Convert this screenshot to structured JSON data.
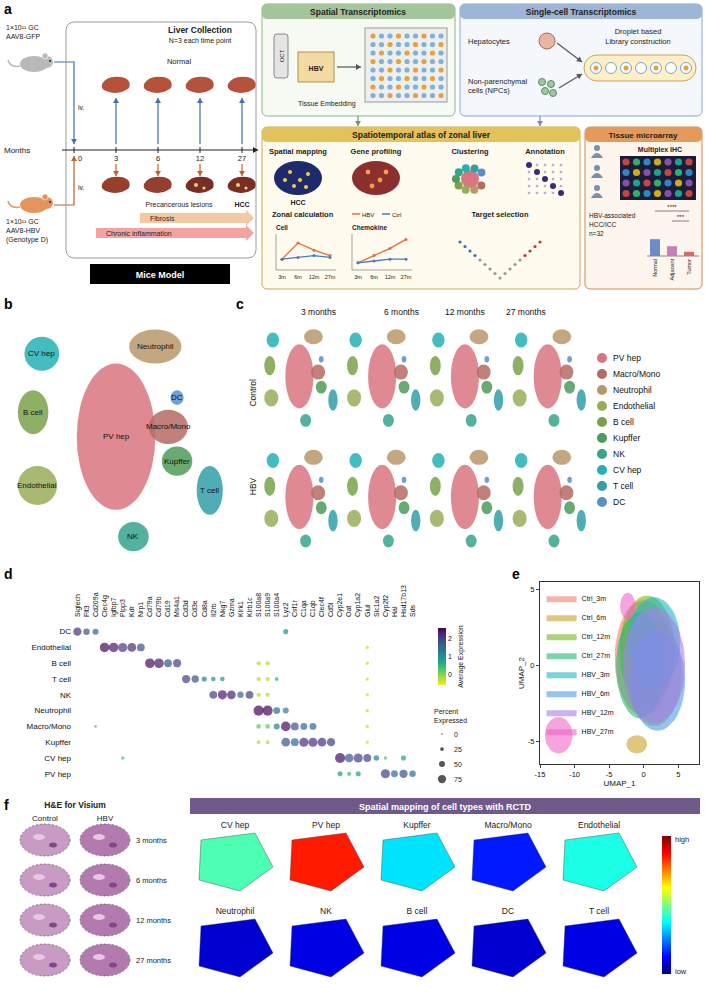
{
  "diagram": {
    "panel_a": {
      "letter": "a",
      "gfp_dose": [
        "1×10¹¹ GC",
        "AAV8-GFP"
      ],
      "hbv_dose": [
        "1×10¹¹ GC",
        "AAV8-HBV",
        "(Genotype D)"
      ],
      "route": "iv.",
      "liver_collection": "Liver Collection",
      "replicates": "N=3 each time point",
      "normal": "Normal",
      "months_label": "Months",
      "months": [
        0,
        3,
        6,
        12,
        27
      ],
      "outcomes": [
        "Precancerous lesions",
        "HCC"
      ],
      "processes": [
        "Fibrosis",
        "Chronic inflammation"
      ],
      "model_label": "Mice Model",
      "spatial": {
        "title": "Spatial Transcriptomics",
        "oct": "OCT",
        "embedding": "Tissue Embedding",
        "block": "HBV"
      },
      "single_cell": {
        "title": "Single-cell Transcriptomics",
        "hepatocytes": "Hepatocytes",
        "npc": [
          "Non-parenchymal",
          "cells (NPCs)"
        ],
        "library": [
          "Droplet based",
          "Library construction"
        ]
      },
      "atlas": {
        "title": "Spatiotemporal atlas of zonal liver",
        "spatial_mapping": "Spatial mapping",
        "gene_profiling": "Gene profiling",
        "hcc": "HCC",
        "zonal": "Zonal calculation",
        "mini_charts": {
          "x": [
            "3m",
            "6m",
            "12m",
            "27m"
          ],
          "series_names": [
            "HBV",
            "Ctrl"
          ],
          "series_colors": [
            "#e0703a",
            "#4a7bc0"
          ],
          "ylim": [
            0,
            1
          ],
          "panels": [
            {
              "title": "Cell",
              "values": [
                [
                  0.3,
                  0.75,
                  0.55,
                  0.4
                ],
                [
                  0.3,
                  0.35,
                  0.4,
                  0.35
                ]
              ]
            },
            {
              "title": "Chemokine",
              "values": [
                [
                  0.2,
                  0.4,
                  0.6,
                  0.85
                ],
                [
                  0.2,
                  0.25,
                  0.3,
                  0.3
                ]
              ]
            }
          ]
        },
        "clustering": "Clustering",
        "annotation": "Annotation",
        "target": "Target selection"
      },
      "tma": {
        "title": "Tissue microarray",
        "ihc": "Multiplex IHC",
        "cohort": [
          "HBV-associated",
          "HCC/ICC",
          "n=32"
        ],
        "bars": {
          "categories": [
            "Normal",
            "Adjacent",
            "Tumor"
          ],
          "values": [
            0.6,
            0.35,
            0.15
          ],
          "ylim": [
            0,
            1
          ],
          "significance": [
            "****",
            "***"
          ]
        }
      }
    },
    "panel_f": {
      "letter": "f",
      "he_title": "H&E for Visium",
      "he_columns": [
        "Control",
        "HBV"
      ],
      "he_rows": [
        "3 months",
        "6 months",
        "12 months",
        "27 months"
      ],
      "rctd_title": "Spatial mapping of cell types with RCTD",
      "scale_labels": {
        "high": "high",
        "low": "low"
      },
      "scale_range": [
        0,
        1
      ],
      "maps": [
        {
          "name": "CV hep",
          "level": 0.45
        },
        {
          "name": "PV hep",
          "level": 0.85
        },
        {
          "name": "Kupffer",
          "level": 0.35
        },
        {
          "name": "Macro/Mono",
          "level": 0.15
        },
        {
          "name": "Endothelial",
          "level": 0.4
        },
        {
          "name": "Neutrophil",
          "level": 0.08
        },
        {
          "name": "NK",
          "level": 0.1
        },
        {
          "name": "B cell",
          "level": 0.1
        },
        {
          "name": "DC",
          "level": 0.08
        },
        {
          "name": "T cell",
          "level": 0.1
        }
      ]
    }
  },
  "chart_data": [
    {
      "panel": "b",
      "type": "cluster_map",
      "tick_labels": false,
      "xlim": [
        0,
        100
      ],
      "ylim": [
        0,
        100
      ],
      "clusters": [
        {
          "name": "PV hep",
          "color": "#d9757f",
          "x": 50,
          "y": 50,
          "rx": 18,
          "ry": 30
        },
        {
          "name": "Macro/Mono",
          "color": "#b56b63",
          "x": 74,
          "y": 54,
          "rx": 9,
          "ry": 7
        },
        {
          "name": "Neutrophil",
          "color": "#b8986a",
          "x": 68,
          "y": 87,
          "rx": 12,
          "ry": 7
        },
        {
          "name": "Endothelial",
          "color": "#98ad5a",
          "x": 14,
          "y": 30,
          "rx": 9,
          "ry": 8
        },
        {
          "name": "B cell",
          "color": "#7aa24a",
          "x": 12,
          "y": 60,
          "rx": 7,
          "ry": 9
        },
        {
          "name": "Kupffer",
          "color": "#4f9b5a",
          "x": 78,
          "y": 40,
          "rx": 7,
          "ry": 6
        },
        {
          "name": "NK",
          "color": "#35a58c",
          "x": 58,
          "y": 9,
          "rx": 7,
          "ry": 6
        },
        {
          "name": "CV hep",
          "color": "#24b0b5",
          "x": 16,
          "y": 84,
          "rx": 8,
          "ry": 7
        },
        {
          "name": "T cell",
          "color": "#319ea8",
          "x": 93,
          "y": 28,
          "rx": 6,
          "ry": 10
        },
        {
          "name": "DC",
          "color": "#5a8fc8",
          "x": 78,
          "y": 66,
          "rx": 3,
          "ry": 3
        }
      ]
    },
    {
      "panel": "c",
      "type": "cluster_grid",
      "tick_labels": false,
      "legend": "right",
      "rows": [
        "Control",
        "HBV"
      ],
      "columns": [
        "3 months",
        "6 months",
        "12 months",
        "27 months"
      ]
    },
    {
      "panel": "d",
      "type": "dot_plot",
      "genes": [
        "Siglech",
        "Flt3",
        "Cd209a",
        "Clec4g",
        "Igfbp7",
        "Plpp3",
        "Kdr",
        "Nrp1",
        "Cd79a",
        "Cd79b",
        "Cd19",
        "Ms4a1",
        "Cd3d",
        "Cd3e",
        "Cd8a",
        "Il2rb",
        "Nkg7",
        "Gzma",
        "Klrk1",
        "Klrb1c",
        "S100a8",
        "S100a9",
        "S100a4",
        "Lyz2",
        "Csf1r",
        "C1qa",
        "C1qb",
        "Clec4f",
        "Cd5l",
        "Cyp2e1",
        "Oat",
        "Cyp1a2",
        "Glul",
        "Slc1a2",
        "Cyp2f2",
        "Hal",
        "Hsd17b13",
        "Sds"
      ],
      "cell_types": [
        "DC",
        "Endothelial",
        "B cell",
        "T cell",
        "NK",
        "Neutrophil",
        "Macro/Mono",
        "Kupffer",
        "CV hep",
        "PV hep"
      ],
      "color_label": "Average Expression",
      "color_range": [
        -0.6,
        2.6
      ],
      "color_ticks": [
        0,
        1,
        2
      ],
      "size_label": "Percent Expressed",
      "size_ticks": [
        0,
        25,
        50,
        75
      ],
      "dots": [
        [
          "Siglech",
          "DC",
          2.2,
          75
        ],
        [
          "Flt3",
          "DC",
          1.8,
          55
        ],
        [
          "Cd209a",
          "DC",
          1.6,
          50
        ],
        [
          "Cd209a",
          "Macro/Mono",
          0.3,
          15
        ],
        [
          "Clec4g",
          "Endothelial",
          2.5,
          90
        ],
        [
          "Igfbp7",
          "Endothelial",
          2.4,
          90
        ],
        [
          "Plpp3",
          "Endothelial",
          2.1,
          85
        ],
        [
          "Plpp3",
          "CV hep",
          0.4,
          20
        ],
        [
          "Kdr",
          "Endothelial",
          2.2,
          80
        ],
        [
          "Nrp1",
          "Endothelial",
          1.8,
          70
        ],
        [
          "Cd79a",
          "B cell",
          2.5,
          90
        ],
        [
          "Cd79b",
          "B cell",
          2.4,
          90
        ],
        [
          "Cd19",
          "B cell",
          1.8,
          70
        ],
        [
          "Ms4a1",
          "B cell",
          2.0,
          75
        ],
        [
          "Cd3d",
          "T cell",
          2.0,
          75
        ],
        [
          "Cd3e",
          "T cell",
          1.8,
          65
        ],
        [
          "Cd8a",
          "T cell",
          1.2,
          40
        ],
        [
          "Il2rb",
          "T cell",
          1.0,
          35
        ],
        [
          "Il2rb",
          "NK",
          2.0,
          70
        ],
        [
          "Nkg7",
          "T cell",
          1.0,
          35
        ],
        [
          "Nkg7",
          "NK",
          2.4,
          85
        ],
        [
          "Gzma",
          "NK",
          2.3,
          80
        ],
        [
          "Klrk1",
          "NK",
          1.5,
          55
        ],
        [
          "Klrb1c",
          "NK",
          2.0,
          70
        ],
        [
          "S100a8",
          "Neutrophil",
          2.6,
          95
        ],
        [
          "S100a8",
          "B cell",
          -0.2,
          30
        ],
        [
          "S100a8",
          "T cell",
          -0.2,
          30
        ],
        [
          "S100a8",
          "NK",
          -0.2,
          30
        ],
        [
          "S100a8",
          "Macro/Mono",
          0.2,
          35
        ],
        [
          "S100a8",
          "Kupffer",
          -0.2,
          25
        ],
        [
          "S100a9",
          "Neutrophil",
          2.6,
          95
        ],
        [
          "S100a9",
          "B cell",
          -0.2,
          30
        ],
        [
          "S100a9",
          "T cell",
          -0.2,
          30
        ],
        [
          "S100a9",
          "NK",
          -0.2,
          30
        ],
        [
          "S100a9",
          "Macro/Mono",
          0.2,
          35
        ],
        [
          "S100a9",
          "Kupffer",
          -0.2,
          25
        ],
        [
          "S100a4",
          "T cell",
          0.6,
          25
        ],
        [
          "S100a4",
          "Neutrophil",
          1.5,
          60
        ],
        [
          "S100a4",
          "Macro/Mono",
          1.2,
          50
        ],
        [
          "Lyz2",
          "DC",
          1.0,
          40
        ],
        [
          "Lyz2",
          "Neutrophil",
          1.2,
          50
        ],
        [
          "Lyz2",
          "Macro/Mono",
          2.5,
          90
        ],
        [
          "Lyz2",
          "Kupffer",
          1.8,
          80
        ],
        [
          "Csf1r",
          "Macro/Mono",
          1.8,
          70
        ],
        [
          "Csf1r",
          "Kupffer",
          1.6,
          70
        ],
        [
          "C1qa",
          "Macro/Mono",
          1.5,
          60
        ],
        [
          "C1qa",
          "Kupffer",
          2.2,
          85
        ],
        [
          "C1qb",
          "Macro/Mono",
          1.5,
          60
        ],
        [
          "C1qb",
          "Kupffer",
          2.2,
          85
        ],
        [
          "Clec4f",
          "Kupffer",
          2.2,
          80
        ],
        [
          "Cd5l",
          "Kupffer",
          2.0,
          75
        ],
        [
          "Cyp2e1",
          "CV hep",
          2.5,
          95
        ],
        [
          "Cyp2e1",
          "PV hep",
          0.8,
          40
        ],
        [
          "Oat",
          "CV hep",
          1.8,
          80
        ],
        [
          "Oat",
          "PV hep",
          0.5,
          30
        ],
        [
          "Cyp1a2",
          "CV hep",
          2.0,
          85
        ],
        [
          "Cyp1a2",
          "PV hep",
          0.8,
          40
        ],
        [
          "Glul",
          "CV hep",
          2.0,
          70
        ],
        [
          "Glul",
          "Endothelial",
          -0.3,
          20
        ],
        [
          "Glul",
          "B cell",
          -0.3,
          20
        ],
        [
          "Glul",
          "T cell",
          -0.3,
          20
        ],
        [
          "Glul",
          "NK",
          -0.3,
          20
        ],
        [
          "Glul",
          "Neutrophil",
          -0.3,
          20
        ],
        [
          "Glul",
          "Macro/Mono",
          -0.3,
          20
        ],
        [
          "Glul",
          "Kupffer",
          -0.3,
          20
        ],
        [
          "Slc1a2",
          "CV hep",
          1.2,
          45
        ],
        [
          "Cyp2f2",
          "CV hep",
          0.3,
          20
        ],
        [
          "Cyp2f2",
          "PV hep",
          2.0,
          85
        ],
        [
          "Hal",
          "PV hep",
          1.5,
          60
        ],
        [
          "Hsd17b13",
          "CV hep",
          0.8,
          40
        ],
        [
          "Hsd17b13",
          "PV hep",
          1.8,
          75
        ],
        [
          "Sds",
          "PV hep",
          1.5,
          55
        ]
      ]
    },
    {
      "panel": "e",
      "type": "scatter",
      "xlabel": "UMAP_1",
      "ylabel": "UMAP_2",
      "xlim": [
        -15,
        8
      ],
      "ylim": [
        -6.5,
        5.5
      ],
      "xticks": [
        -15,
        -10,
        -5,
        0,
        5
      ],
      "yticks": [
        -5,
        0,
        5
      ],
      "legend": "top-left",
      "series": [
        {
          "name": "Ctrl_3m",
          "color": "#f07f73",
          "regions": [
            [
              0,
              0.5,
              4.2,
              3.8
            ]
          ]
        },
        {
          "name": "Ctrl_6m",
          "color": "#c9a227",
          "regions": [
            [
              1.5,
              -0.5,
              4,
              3.5
            ],
            [
              -1,
              -5.2,
              1.5,
              0.6
            ]
          ]
        },
        {
          "name": "Ctrl_12m",
          "color": "#7ab51d",
          "regions": [
            [
              0.5,
              1,
              4,
              3.6
            ]
          ]
        },
        {
          "name": "Ctrl_27m",
          "color": "#2ab673",
          "regions": [
            [
              -0.5,
              0,
              3.5,
              3.5
            ]
          ]
        },
        {
          "name": "HBV_3m",
          "color": "#1fb8c4",
          "regions": [
            [
              1.5,
              1.5,
              3.8,
              3
            ]
          ]
        },
        {
          "name": "HBV_6m",
          "color": "#4e9de6",
          "regions": [
            [
              2,
              -1,
              4,
              3.3
            ]
          ]
        },
        {
          "name": "HBV_12m",
          "color": "#a77ff0",
          "regions": [
            [
              1.5,
              0,
              4.5,
              3.8
            ]
          ]
        },
        {
          "name": "HBV_27m",
          "color": "#ef67c8",
          "regions": [
            [
              -12.3,
              -4.6,
              2,
              1.2
            ],
            [
              -2.3,
              3.9,
              1.1,
              0.9
            ]
          ]
        }
      ]
    }
  ]
}
